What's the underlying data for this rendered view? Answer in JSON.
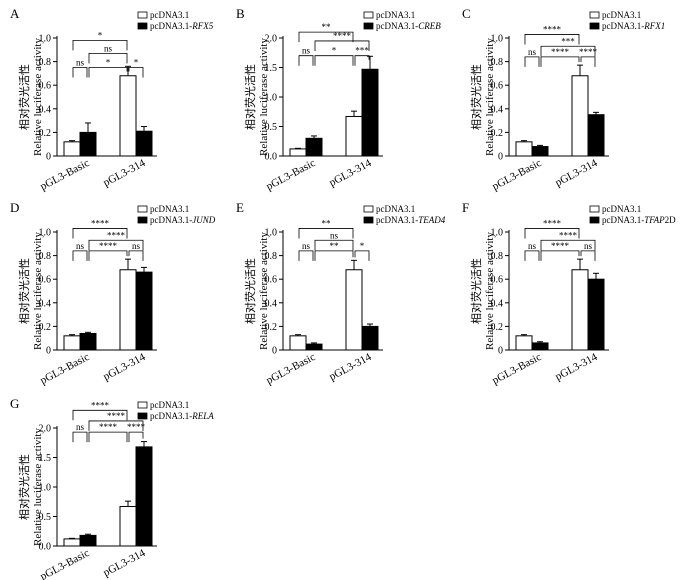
{
  "figure": {
    "categories": [
      "pGL3-Basic",
      "pGL3-314"
    ],
    "ylabel_cn": "相对荧光活性",
    "ylabel_en": "Relative luciferase activity"
  },
  "chart_data": [
    {
      "label": "A",
      "type": "bar",
      "categories": [
        "pGL3-Basic",
        "pGL3-314"
      ],
      "ylim": [
        0,
        1.0
      ],
      "yticks": [
        0,
        0.2,
        0.4,
        0.6,
        0.8,
        1.0
      ],
      "series": [
        {
          "legend_prefix": "pcDNA3.1",
          "legend_gene": "",
          "fill": "#ffffff",
          "values": [
            0.12,
            0.68
          ],
          "errors": [
            0.01,
            0.08
          ]
        },
        {
          "legend_prefix": "pcDNA3.1-",
          "legend_gene": "RFX5",
          "fill": "#000000",
          "values": [
            0.2,
            0.21
          ],
          "errors": [
            0.08,
            0.04
          ]
        }
      ],
      "comparisons": [
        {
          "a": 0,
          "b": 2,
          "y": 0.98,
          "label": "*"
        },
        {
          "a": 1,
          "b": 2,
          "y": 0.87,
          "label": "ns"
        },
        {
          "a": 0,
          "b": 1,
          "y": 0.75,
          "label": "ns"
        },
        {
          "a": 1,
          "b": 2,
          "y": 0.75,
          "label": "*"
        },
        {
          "a": 2,
          "b": 3,
          "y": 0.75,
          "label": "*"
        }
      ]
    },
    {
      "label": "B",
      "type": "bar",
      "categories": [
        "pGL3-Basic",
        "pGL3-314"
      ],
      "ylim": [
        0,
        2.0
      ],
      "yticks": [
        0,
        0.5,
        1.0,
        1.5,
        2.0
      ],
      "series": [
        {
          "legend_prefix": "pcDNA3.1",
          "legend_gene": "",
          "fill": "#ffffff",
          "values": [
            0.12,
            0.67
          ],
          "errors": [
            0.01,
            0.09
          ]
        },
        {
          "legend_prefix": "pcDNA3.1-",
          "legend_gene": "CREB",
          "fill": "#000000",
          "values": [
            0.3,
            1.47
          ],
          "errors": [
            0.04,
            0.22
          ]
        }
      ],
      "comparisons": [
        {
          "a": 0,
          "b": 2,
          "y": 2.1,
          "label": "**"
        },
        {
          "a": 1,
          "b": 3,
          "y": 1.95,
          "label": "****"
        },
        {
          "a": 0,
          "b": 1,
          "y": 1.7,
          "label": "ns"
        },
        {
          "a": 1,
          "b": 2,
          "y": 1.7,
          "label": "*"
        },
        {
          "a": 2,
          "b": 3,
          "y": 1.7,
          "label": "***"
        }
      ]
    },
    {
      "label": "C",
      "type": "bar",
      "categories": [
        "pGL3-Basic",
        "pGL3-314"
      ],
      "ylim": [
        0,
        1.0
      ],
      "yticks": [
        0,
        0.2,
        0.4,
        0.6,
        0.8,
        1.0
      ],
      "series": [
        {
          "legend_prefix": "pcDNA3.1",
          "legend_gene": "",
          "fill": "#ffffff",
          "values": [
            0.12,
            0.68
          ],
          "errors": [
            0.01,
            0.09
          ]
        },
        {
          "legend_prefix": "pcDNA3.1-",
          "legend_gene": "RFX1",
          "fill": "#000000",
          "values": [
            0.08,
            0.35
          ],
          "errors": [
            0.01,
            0.02
          ]
        }
      ],
      "comparisons": [
        {
          "a": 0,
          "b": 2,
          "y": 1.03,
          "label": "****"
        },
        {
          "a": 1,
          "b": 3,
          "y": 0.93,
          "label": "***"
        },
        {
          "a": 0,
          "b": 1,
          "y": 0.84,
          "label": "ns"
        },
        {
          "a": 1,
          "b": 2,
          "y": 0.84,
          "label": "****"
        },
        {
          "a": 2,
          "b": 3,
          "y": 0.84,
          "label": "****"
        }
      ]
    },
    {
      "label": "D",
      "type": "bar",
      "categories": [
        "pGL3-Basic",
        "pGL3-314"
      ],
      "ylim": [
        0,
        1.0
      ],
      "yticks": [
        0,
        0.2,
        0.4,
        0.6,
        0.8,
        1.0
      ],
      "series": [
        {
          "legend_prefix": "pcDNA3.1",
          "legend_gene": "",
          "fill": "#ffffff",
          "values": [
            0.12,
            0.68
          ],
          "errors": [
            0.01,
            0.09
          ]
        },
        {
          "legend_prefix": "pcDNA3.1-",
          "legend_gene": "JUND",
          "fill": "#000000",
          "values": [
            0.14,
            0.66
          ],
          "errors": [
            0.01,
            0.04
          ]
        }
      ],
      "comparisons": [
        {
          "a": 0,
          "b": 2,
          "y": 1.03,
          "label": "****"
        },
        {
          "a": 1,
          "b": 3,
          "y": 0.93,
          "label": "****"
        },
        {
          "a": 0,
          "b": 1,
          "y": 0.84,
          "label": "ns"
        },
        {
          "a": 1,
          "b": 2,
          "y": 0.84,
          "label": "****"
        },
        {
          "a": 2,
          "b": 3,
          "y": 0.84,
          "label": "ns"
        }
      ]
    },
    {
      "label": "E",
      "type": "bar",
      "categories": [
        "pGL3-Basic",
        "pGL3-314"
      ],
      "ylim": [
        0,
        1.0
      ],
      "yticks": [
        0,
        0.2,
        0.4,
        0.6,
        0.8,
        1.0
      ],
      "series": [
        {
          "legend_prefix": "pcDNA3.1",
          "legend_gene": "",
          "fill": "#ffffff",
          "values": [
            0.12,
            0.68
          ],
          "errors": [
            0.01,
            0.08
          ]
        },
        {
          "legend_prefix": "pcDNA3.1-",
          "legend_gene": "TEAD4",
          "fill": "#000000",
          "values": [
            0.05,
            0.2
          ],
          "errors": [
            0.01,
            0.02
          ]
        }
      ],
      "comparisons": [
        {
          "a": 0,
          "b": 2,
          "y": 1.03,
          "label": "**"
        },
        {
          "a": 1,
          "b": 2,
          "y": 0.93,
          "label": "ns"
        },
        {
          "a": 0,
          "b": 1,
          "y": 0.84,
          "label": "ns"
        },
        {
          "a": 1,
          "b": 2,
          "y": 0.84,
          "label": "**"
        },
        {
          "a": 2,
          "b": 3,
          "y": 0.84,
          "label": "*"
        }
      ]
    },
    {
      "label": "F",
      "type": "bar",
      "categories": [
        "pGL3-Basic",
        "pGL3-314"
      ],
      "ylim": [
        0,
        1.0
      ],
      "yticks": [
        0,
        0.2,
        0.4,
        0.6,
        0.8,
        1.0
      ],
      "series": [
        {
          "legend_prefix": "pcDNA3.1",
          "legend_gene": "",
          "fill": "#ffffff",
          "values": [
            0.12,
            0.68
          ],
          "errors": [
            0.01,
            0.09
          ]
        },
        {
          "legend_prefix": "pcDNA3.1-",
          "legend_gene": "TFAP2D",
          "legend_gene_italic": "TFAP",
          "legend_gene_plain": "2D",
          "fill": "#000000",
          "values": [
            0.06,
            0.6
          ],
          "errors": [
            0.01,
            0.05
          ]
        }
      ],
      "comparisons": [
        {
          "a": 0,
          "b": 2,
          "y": 1.03,
          "label": "****"
        },
        {
          "a": 1,
          "b": 3,
          "y": 0.93,
          "label": "****"
        },
        {
          "a": 0,
          "b": 1,
          "y": 0.84,
          "label": "ns"
        },
        {
          "a": 1,
          "b": 2,
          "y": 0.84,
          "label": "****"
        },
        {
          "a": 2,
          "b": 3,
          "y": 0.84,
          "label": "ns"
        }
      ]
    },
    {
      "label": "G",
      "type": "bar",
      "categories": [
        "pGL3-Basic",
        "pGL3-314"
      ],
      "ylim": [
        0,
        2.0
      ],
      "yticks": [
        0,
        0.5,
        1.0,
        1.5,
        2.0
      ],
      "series": [
        {
          "legend_prefix": "pcDNA3.1",
          "legend_gene": "",
          "fill": "#ffffff",
          "values": [
            0.12,
            0.67
          ],
          "errors": [
            0.01,
            0.09
          ]
        },
        {
          "legend_prefix": "pcDNA3.1-",
          "legend_gene": "RELA",
          "fill": "#000000",
          "values": [
            0.18,
            1.68
          ],
          "errors": [
            0.02,
            0.09
          ]
        }
      ],
      "comparisons": [
        {
          "a": 0,
          "b": 2,
          "y": 2.3,
          "label": "****"
        },
        {
          "a": 1,
          "b": 3,
          "y": 2.12,
          "label": "****"
        },
        {
          "a": 0,
          "b": 1,
          "y": 1.93,
          "label": "ns"
        },
        {
          "a": 1,
          "b": 2,
          "y": 1.93,
          "label": "****"
        },
        {
          "a": 2,
          "b": 3,
          "y": 1.93,
          "label": "****"
        }
      ]
    }
  ]
}
